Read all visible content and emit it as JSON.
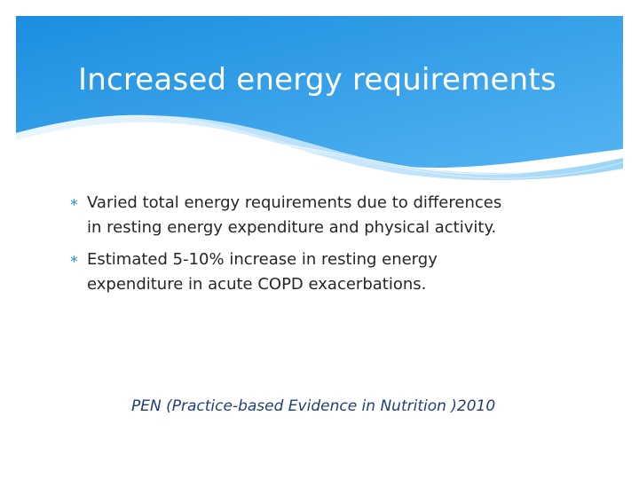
{
  "slide": {
    "title": "Increased energy requirements",
    "bullet_icon": "asterisk-bullet-icon",
    "bullets": [
      {
        "marker": "∗",
        "lines": [
          "Varied total energy requirements due to differences",
          "in resting energy expenditure and physical activity."
        ]
      },
      {
        "marker": "∗",
        "lines": [
          "Estimated 5-10% increase in resting energy",
          "expenditure in acute COPD exacerbations."
        ]
      }
    ],
    "citation": "PEN (Practice-based Evidence in Nutrition )2010"
  },
  "colors": {
    "header_top": "#1b8ee0",
    "header_bottom": "#54b4f2",
    "wave_light": "#bfe3fb",
    "title": "#ffffff",
    "body_text": "#262626",
    "citation": "#1f3f7a",
    "bullet_marker": "#3aa0e0"
  }
}
